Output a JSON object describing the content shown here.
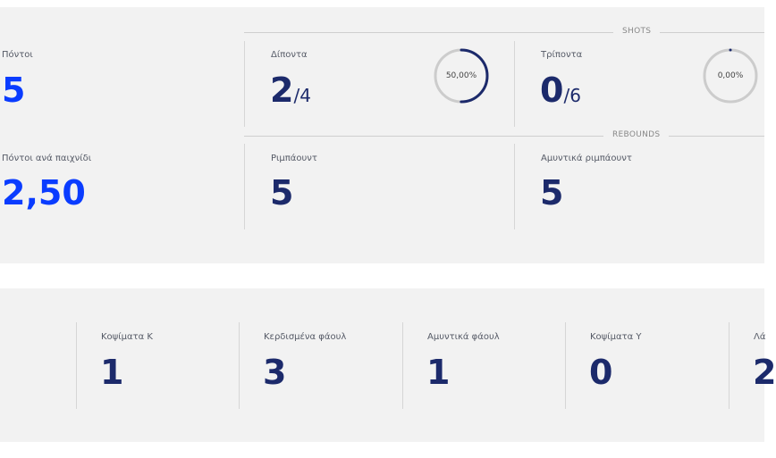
{
  "left": {
    "points_label": "Πόντοι",
    "points_value": "5",
    "ppg_label": "Πόντοι ανά παιχνίδι",
    "ppg_value": "2,50"
  },
  "shots": {
    "section_label": "SHOTS",
    "two_pt": {
      "label": "Δίποντα",
      "made": "2",
      "attempted": "/4",
      "pct_label": "50,00%",
      "pct": 50
    },
    "three_pt": {
      "label": "Τρίποντα",
      "made": "0",
      "attempted": "/6",
      "pct_label": "0,00%",
      "pct": 0
    }
  },
  "rebounds": {
    "section_label": "REBOUNDS",
    "total": {
      "label": "Ριμπάουντ",
      "value": "5"
    },
    "defensive": {
      "label": "Αμυντικά ριμπάουντ",
      "value": "5"
    }
  },
  "bottom": [
    {
      "label": "Κοψίματα Κ",
      "value": "1"
    },
    {
      "label": "Κερδισμένα φάουλ",
      "value": "3"
    },
    {
      "label": "Αμυντικά φάουλ",
      "value": "1"
    },
    {
      "label": "Κοψίματα Υ",
      "value": "0"
    },
    {
      "label": "Λά",
      "value": "2"
    }
  ],
  "colors": {
    "accent_blue": "#0a3cff",
    "navy": "#1c2a6b",
    "ring_track": "#cccccc"
  }
}
